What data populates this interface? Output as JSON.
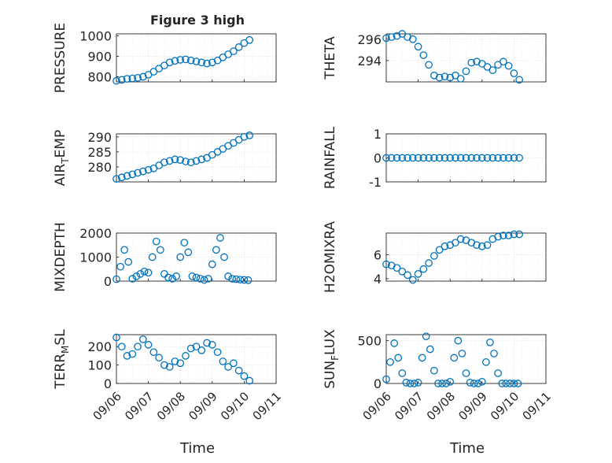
{
  "figure": {
    "title": "Figure 3 high",
    "xlabel": "Time",
    "xticks": [
      "09/06",
      "09/07",
      "09/08",
      "09/09",
      "09/10",
      "09/11"
    ],
    "xlim": [
      "09/06",
      "09/11"
    ],
    "marker_color": "#0072BD",
    "axis_color": "#262626",
    "grid_color": "#dcdcdc"
  },
  "chart_data": [
    {
      "type": "scatter",
      "marker": "circle",
      "grid": true,
      "ylabel": "PRESSURE",
      "ylim": [
        775,
        1010
      ],
      "yticks": [
        800,
        900,
        1000
      ],
      "x": [
        "09/06 00:00",
        "09/06 04:00",
        "09/06 08:00",
        "09/06 12:00",
        "09/06 16:00",
        "09/06 20:00",
        "09/07 00:00",
        "09/07 04:00",
        "09/07 08:00",
        "09/07 12:00",
        "09/07 16:00",
        "09/07 20:00",
        "09/08 00:00",
        "09/08 04:00",
        "09/08 08:00",
        "09/08 12:00",
        "09/08 16:00",
        "09/08 20:00",
        "09/09 00:00",
        "09/09 04:00",
        "09/09 08:00",
        "09/09 12:00",
        "09/09 16:00",
        "09/09 20:00",
        "09/10 00:00",
        "09/10 04:00"
      ],
      "y": [
        780,
        785,
        790,
        792,
        795,
        800,
        810,
        825,
        840,
        855,
        870,
        878,
        883,
        885,
        880,
        875,
        870,
        865,
        870,
        880,
        895,
        910,
        925,
        945,
        965,
        980
      ]
    },
    {
      "type": "scatter",
      "marker": "circle",
      "grid": true,
      "ylabel": "THETA",
      "ylim": [
        292,
        296.5
      ],
      "yticks": [
        294,
        296
      ],
      "x": [
        "09/06 00:00",
        "09/06 04:00",
        "09/06 08:00",
        "09/06 12:00",
        "09/06 16:00",
        "09/06 20:00",
        "09/07 00:00",
        "09/07 04:00",
        "09/07 08:00",
        "09/07 12:00",
        "09/07 16:00",
        "09/07 20:00",
        "09/08 00:00",
        "09/08 04:00",
        "09/08 08:00",
        "09/08 12:00",
        "09/08 16:00",
        "09/08 20:00",
        "09/09 00:00",
        "09/09 04:00",
        "09/09 08:00",
        "09/09 12:00",
        "09/09 16:00",
        "09/09 20:00",
        "09/10 00:00",
        "09/10 04:00"
      ],
      "y": [
        296.1,
        296.2,
        296.3,
        296.5,
        296.2,
        296.0,
        295.3,
        294.5,
        293.6,
        292.6,
        292.4,
        292.5,
        292.4,
        292.6,
        292.3,
        293.0,
        293.8,
        293.9,
        293.7,
        293.4,
        293.1,
        293.6,
        293.9,
        293.5,
        292.8,
        292.2
      ]
    },
    {
      "type": "scatter",
      "marker": "circle",
      "grid": true,
      "ylabel": "AIR_TEMP",
      "ylim": [
        275,
        291
      ],
      "yticks": [
        280,
        285,
        290
      ],
      "x": [
        "09/06 00:00",
        "09/06 04:00",
        "09/06 08:00",
        "09/06 12:00",
        "09/06 16:00",
        "09/06 20:00",
        "09/07 00:00",
        "09/07 04:00",
        "09/07 08:00",
        "09/07 12:00",
        "09/07 16:00",
        "09/07 20:00",
        "09/08 00:00",
        "09/08 04:00",
        "09/08 08:00",
        "09/08 12:00",
        "09/08 16:00",
        "09/08 20:00",
        "09/09 00:00",
        "09/09 04:00",
        "09/09 08:00",
        "09/09 12:00",
        "09/09 16:00",
        "09/09 20:00",
        "09/10 00:00",
        "09/10 04:00"
      ],
      "y": [
        276,
        276.5,
        277,
        277.5,
        278,
        278.5,
        279,
        279.5,
        280.5,
        281.5,
        282,
        282.5,
        282.3,
        281.8,
        281.5,
        282,
        282.5,
        283,
        284,
        285,
        286,
        287,
        288,
        289,
        290,
        290.5
      ]
    },
    {
      "type": "scatter",
      "marker": "circle",
      "grid": true,
      "ylabel": "RAINFALL",
      "ylim": [
        -1,
        1
      ],
      "yticks": [
        -1,
        0,
        1
      ],
      "x": [
        "09/06 00:00",
        "09/06 04:00",
        "09/06 08:00",
        "09/06 12:00",
        "09/06 16:00",
        "09/06 20:00",
        "09/07 00:00",
        "09/07 04:00",
        "09/07 08:00",
        "09/07 12:00",
        "09/07 16:00",
        "09/07 20:00",
        "09/08 00:00",
        "09/08 04:00",
        "09/08 08:00",
        "09/08 12:00",
        "09/08 16:00",
        "09/08 20:00",
        "09/09 00:00",
        "09/09 04:00",
        "09/09 08:00",
        "09/09 12:00",
        "09/09 16:00",
        "09/09 20:00",
        "09/10 00:00",
        "09/10 04:00"
      ],
      "y": [
        0,
        0,
        0,
        0,
        0,
        0,
        0,
        0,
        0,
        0,
        0,
        0,
        0,
        0,
        0,
        0,
        0,
        0,
        0,
        0,
        0,
        0,
        0,
        0,
        0,
        0
      ]
    },
    {
      "type": "scatter",
      "marker": "circle",
      "grid": true,
      "ylabel": "MIXDEPTH",
      "ylim": [
        0,
        2000
      ],
      "yticks": [
        0,
        1000,
        2000
      ],
      "x": [
        "09/06 00:00",
        "09/06 03:00",
        "09/06 06:00",
        "09/06 09:00",
        "09/06 12:00",
        "09/06 15:00",
        "09/06 18:00",
        "09/06 21:00",
        "09/07 00:00",
        "09/07 03:00",
        "09/07 06:00",
        "09/07 09:00",
        "09/07 12:00",
        "09/07 15:00",
        "09/07 18:00",
        "09/07 21:00",
        "09/08 00:00",
        "09/08 03:00",
        "09/08 06:00",
        "09/08 09:00",
        "09/08 12:00",
        "09/08 15:00",
        "09/08 18:00",
        "09/08 21:00",
        "09/09 00:00",
        "09/09 03:00",
        "09/09 06:00",
        "09/09 09:00",
        "09/09 12:00",
        "09/09 15:00",
        "09/09 18:00",
        "09/09 21:00",
        "09/10 00:00",
        "09/10 03:00"
      ],
      "y": [
        80,
        600,
        1300,
        800,
        100,
        200,
        300,
        400,
        350,
        1000,
        1650,
        1300,
        300,
        150,
        100,
        200,
        1000,
        1600,
        1200,
        200,
        150,
        100,
        50,
        100,
        700,
        1300,
        1800,
        1000,
        200,
        100,
        80,
        60,
        50,
        40
      ]
    },
    {
      "type": "scatter",
      "marker": "circle",
      "grid": true,
      "ylabel": "H2OMIXRA",
      "ylim": [
        3.8,
        7.8
      ],
      "yticks": [
        4,
        6
      ],
      "x": [
        "09/06 00:00",
        "09/06 04:00",
        "09/06 08:00",
        "09/06 12:00",
        "09/06 16:00",
        "09/06 20:00",
        "09/07 00:00",
        "09/07 04:00",
        "09/07 08:00",
        "09/07 12:00",
        "09/07 16:00",
        "09/07 20:00",
        "09/08 00:00",
        "09/08 04:00",
        "09/08 08:00",
        "09/08 12:00",
        "09/08 16:00",
        "09/08 20:00",
        "09/09 00:00",
        "09/09 04:00",
        "09/09 08:00",
        "09/09 12:00",
        "09/09 16:00",
        "09/09 20:00",
        "09/10 00:00",
        "09/10 04:00"
      ],
      "y": [
        5.2,
        5.1,
        4.9,
        4.6,
        4.3,
        3.9,
        4.4,
        4.8,
        5.3,
        5.9,
        6.4,
        6.7,
        6.8,
        7.0,
        7.3,
        7.2,
        7.0,
        6.8,
        6.7,
        6.8,
        7.3,
        7.5,
        7.6,
        7.6,
        7.7,
        7.7
      ]
    },
    {
      "type": "scatter",
      "marker": "circle",
      "grid": true,
      "ylabel": "TERR_MSL",
      "ylim": [
        0,
        265
      ],
      "yticks": [
        0,
        100,
        200
      ],
      "x": [
        "09/06 00:00",
        "09/06 04:00",
        "09/06 08:00",
        "09/06 12:00",
        "09/06 16:00",
        "09/06 20:00",
        "09/07 00:00",
        "09/07 04:00",
        "09/07 08:00",
        "09/07 12:00",
        "09/07 16:00",
        "09/07 20:00",
        "09/08 00:00",
        "09/08 04:00",
        "09/08 08:00",
        "09/08 12:00",
        "09/08 16:00",
        "09/08 20:00",
        "09/09 00:00",
        "09/09 04:00",
        "09/09 08:00",
        "09/09 12:00",
        "09/09 16:00",
        "09/09 20:00",
        "09/10 00:00",
        "09/10 04:00"
      ],
      "y": [
        250,
        200,
        150,
        160,
        200,
        240,
        210,
        170,
        140,
        100,
        90,
        120,
        110,
        150,
        190,
        200,
        180,
        220,
        210,
        170,
        120,
        90,
        110,
        70,
        40,
        15
      ]
    },
    {
      "type": "scatter",
      "marker": "circle",
      "grid": true,
      "ylabel": "SUN_FLUX",
      "ylim": [
        0,
        570
      ],
      "yticks": [
        0,
        500
      ],
      "x": [
        "09/06 00:00",
        "09/06 03:00",
        "09/06 06:00",
        "09/06 09:00",
        "09/06 12:00",
        "09/06 15:00",
        "09/06 18:00",
        "09/06 21:00",
        "09/07 00:00",
        "09/07 03:00",
        "09/07 06:00",
        "09/07 09:00",
        "09/07 12:00",
        "09/07 15:00",
        "09/07 18:00",
        "09/07 21:00",
        "09/08 00:00",
        "09/08 03:00",
        "09/08 06:00",
        "09/08 09:00",
        "09/08 12:00",
        "09/08 15:00",
        "09/08 18:00",
        "09/08 21:00",
        "09/09 00:00",
        "09/09 03:00",
        "09/09 06:00",
        "09/09 09:00",
        "09/09 12:00",
        "09/09 15:00",
        "09/09 18:00",
        "09/09 21:00",
        "09/10 00:00",
        "09/10 03:00"
      ],
      "y": [
        50,
        250,
        470,
        300,
        120,
        10,
        0,
        0,
        10,
        300,
        550,
        400,
        150,
        0,
        0,
        0,
        20,
        300,
        500,
        350,
        120,
        10,
        0,
        0,
        20,
        250,
        480,
        350,
        120,
        0,
        0,
        0,
        0,
        0
      ]
    }
  ]
}
